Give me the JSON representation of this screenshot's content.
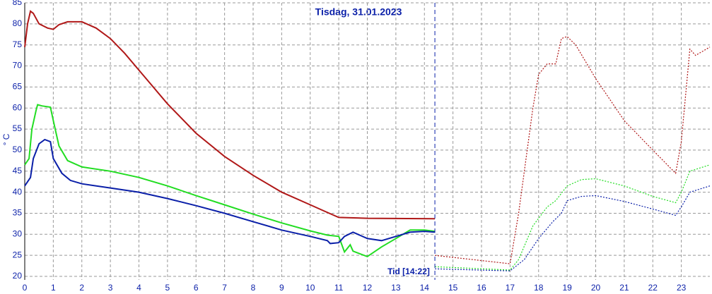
{
  "chart_data": {
    "type": "line",
    "title": "Tisdag, 31.01.2023",
    "y_label": "° C",
    "marker_label": "Tid [14:22]",
    "marker_x": 14.367,
    "xlim": [
      0,
      24
    ],
    "xticks": [
      0,
      1,
      2,
      3,
      4,
      5,
      6,
      7,
      8,
      9,
      10,
      11,
      12,
      13,
      14,
      15,
      16,
      17,
      18,
      19,
      20,
      21,
      22,
      23
    ],
    "ylim": [
      20,
      85
    ],
    "yticks": [
      20,
      25,
      30,
      35,
      40,
      45,
      50,
      55,
      60,
      65,
      70,
      75,
      80,
      85
    ],
    "grid": true,
    "series": [
      {
        "color": "#b01818",
        "style": "solid",
        "x": [
          0,
          0.1,
          0.2,
          0.3,
          0.5,
          0.8,
          1,
          1.2,
          1.5,
          2,
          2.5,
          3,
          3.5,
          4,
          4.5,
          5,
          6,
          7,
          8,
          9,
          10,
          10.5,
          11,
          12,
          14.367
        ],
        "values": [
          74.5,
          80,
          83,
          82.5,
          80,
          79,
          78.7,
          79.8,
          80.5,
          80.5,
          79,
          76.5,
          73,
          69,
          65,
          61,
          54,
          48.5,
          44,
          40,
          37,
          35.5,
          34,
          33.8,
          33.7
        ]
      },
      {
        "color": "#b01818",
        "style": "dotted",
        "x": [
          14.367,
          17,
          17.3,
          17.8,
          18,
          18.3,
          18.6,
          18.8,
          19,
          19.3,
          20,
          21,
          22,
          22.8,
          23,
          23.3,
          23.5,
          24
        ],
        "values": [
          25,
          23,
          35,
          60,
          68,
          70.5,
          70.5,
          76.5,
          77,
          75,
          67,
          57,
          50,
          44.5,
          52,
          74,
          72.5,
          74.5
        ]
      },
      {
        "color": "#22dd22",
        "style": "solid",
        "x": [
          0,
          0.15,
          0.25,
          0.4,
          0.45,
          0.6,
          0.9,
          1,
          1.2,
          1.5,
          2,
          3,
          4,
          5,
          6,
          7,
          8,
          9,
          10,
          10.6,
          11,
          11.2,
          11.4,
          11.5,
          12,
          12.5,
          13,
          13.5,
          14,
          14.367
        ],
        "values": [
          46.5,
          48,
          55,
          59.5,
          60.8,
          60.5,
          60.2,
          57,
          51,
          47.5,
          46,
          45,
          43.5,
          41.5,
          39.2,
          37,
          34.8,
          32.7,
          30.8,
          29.8,
          29.5,
          25.8,
          27.5,
          26,
          24.7,
          27,
          29,
          31,
          31,
          30.7
        ]
      },
      {
        "color": "#22dd22",
        "style": "dotted",
        "x": [
          14.367,
          17,
          17.3,
          17.8,
          18.3,
          18.6,
          19,
          19.5,
          20,
          21,
          22,
          22.8,
          23,
          23.3,
          24
        ],
        "values": [
          22.3,
          21.5,
          24,
          32,
          36.5,
          38,
          41.5,
          43,
          43.2,
          41.5,
          39,
          37.5,
          40,
          45,
          46.5
        ]
      },
      {
        "color": "#0a1fa8",
        "style": "solid",
        "x": [
          0,
          0.2,
          0.3,
          0.5,
          0.7,
          0.9,
          1,
          1.3,
          1.6,
          2,
          3,
          4,
          5,
          6,
          7,
          8,
          9,
          10,
          10.6,
          10.7,
          11,
          11.2,
          11.5,
          12,
          12.5,
          13,
          13.5,
          14,
          14.367
        ],
        "values": [
          41.5,
          43.5,
          48,
          51.5,
          52.5,
          52,
          48,
          44.5,
          42.8,
          42,
          41,
          40,
          38.5,
          36.8,
          35,
          33,
          31,
          29.5,
          28.5,
          27.8,
          28,
          29.5,
          30.5,
          29,
          28.5,
          29.5,
          30.5,
          30.7,
          30.5
        ]
      },
      {
        "color": "#0a1fa8",
        "style": "dotted",
        "x": [
          14.367,
          17,
          17.5,
          18,
          18.5,
          18.8,
          19,
          19.5,
          20,
          21,
          22,
          22.8,
          23,
          23.3,
          24
        ],
        "values": [
          21.8,
          21.3,
          24,
          29,
          33,
          35,
          38,
          39,
          39.2,
          37.8,
          36,
          34.5,
          36.5,
          40,
          41.5
        ]
      }
    ]
  }
}
